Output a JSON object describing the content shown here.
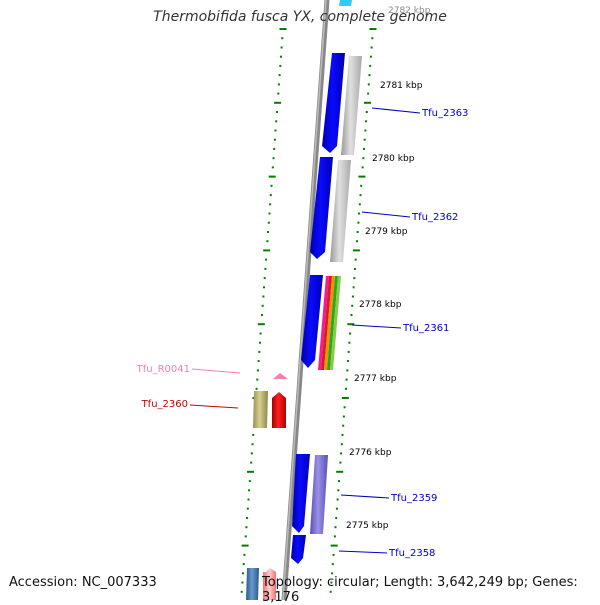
{
  "title": "Thermobifida fusca YX, complete genome",
  "accession": "Accession: NC_007333",
  "topology": "Topology: circular; Length: 3,642,249 bp; Genes: 3,176",
  "scale": {
    "top_partial": "2782 kbp",
    "ticks": [
      "2781 kbp",
      "2780 kbp",
      "2779 kbp",
      "2778 kbp",
      "2777 kbp",
      "2776 kbp",
      "2775 kbp"
    ]
  },
  "genes": [
    {
      "label": "Tfu_2363",
      "color": "#0000cc"
    },
    {
      "label": "Tfu_2362",
      "color": "#0000cc"
    },
    {
      "label": "Tfu_2361",
      "color": "#0000cc"
    },
    {
      "label": "Tfu_R0041",
      "color": "#f080b0"
    },
    {
      "label": "Tfu_2360",
      "color": "#dd0000"
    },
    {
      "label": "Tfu_2359",
      "color": "#0000cc"
    },
    {
      "label": "Tfu_2358",
      "color": "#0000cc"
    }
  ],
  "colors": {
    "cds": "#0000ee",
    "rrna": "#f080b0",
    "tick_green": "#008000",
    "backbone": "#888888"
  }
}
